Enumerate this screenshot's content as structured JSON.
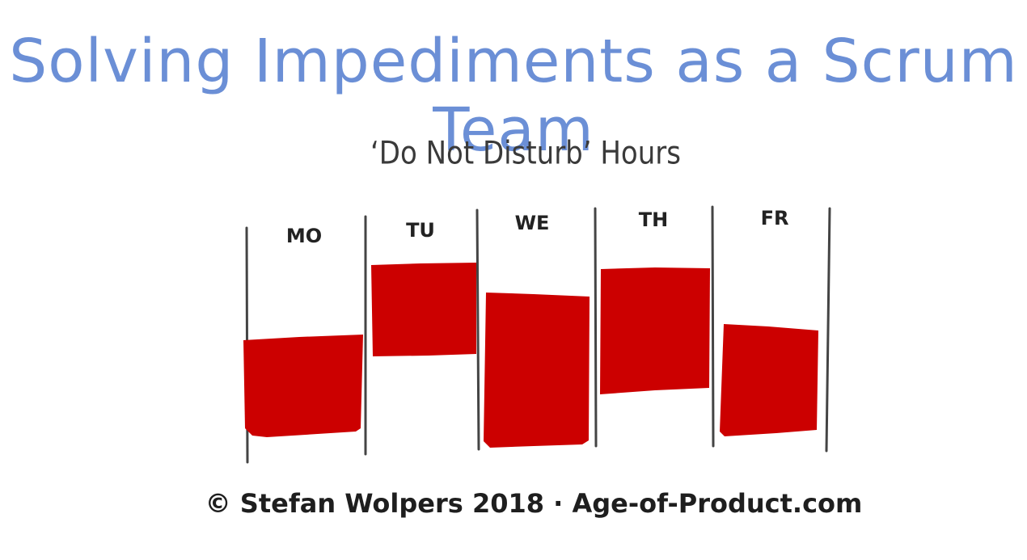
{
  "title": "Solving Impediments as a Scrum Team",
  "subtitle": "‘Do Not Disturb’ Hours",
  "credit": "© Stefan Wolpers 2018 · Age-of-Product.com",
  "accent_color": "#cc0000",
  "title_color": "#6b8fd6",
  "days": [
    {
      "label": "MO"
    },
    {
      "label": "TU"
    },
    {
      "label": "WE"
    },
    {
      "label": "TH"
    },
    {
      "label": "FR"
    }
  ]
}
